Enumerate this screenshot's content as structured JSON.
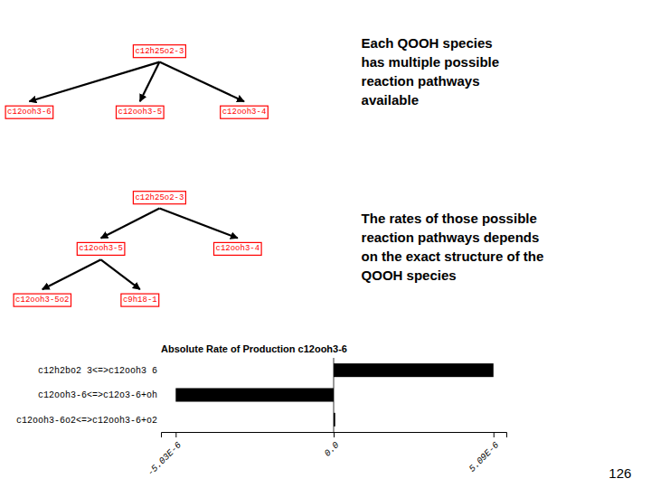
{
  "chart_data": {
    "type": "bar",
    "orientation": "horizontal",
    "title": "Absolute Rate of Production c12ooh3-6",
    "categories": [
      "c12h2bo2 3<=>c12ooh3 6",
      "c12ooh3-6<=>c12o3-6+oh",
      "c12ooh3-6o2<=>c12ooh3-6+o2"
    ],
    "values": [
      5.09e-06,
      -5.03e-06,
      5e-08
    ],
    "color": "#000000",
    "xlim": [
      -5.5e-06,
      5.5e-06
    ],
    "xticks": [
      {
        "value": -5.03e-06,
        "label": "-5.03E-6"
      },
      {
        "value": 0,
        "label": "0.0"
      },
      {
        "value": 5.09e-06,
        "label": "5.09E-6"
      }
    ],
    "annotations": [
      "c12h25o2-3",
      "c12ooh3-6",
      "c12ooh3-5",
      "c12ooh3-4",
      "c12h25o2-3",
      "c12ooh3-5",
      "c12ooh3-4",
      "c12ooh3-5o2",
      "c9h18-1",
      "Each QOOH species\nhas multiple possible\nreaction pathways\navailable",
      "The rates of those possible\nreaction pathways depends\non the exact structure of the\nQOOH species",
      "126"
    ]
  }
}
